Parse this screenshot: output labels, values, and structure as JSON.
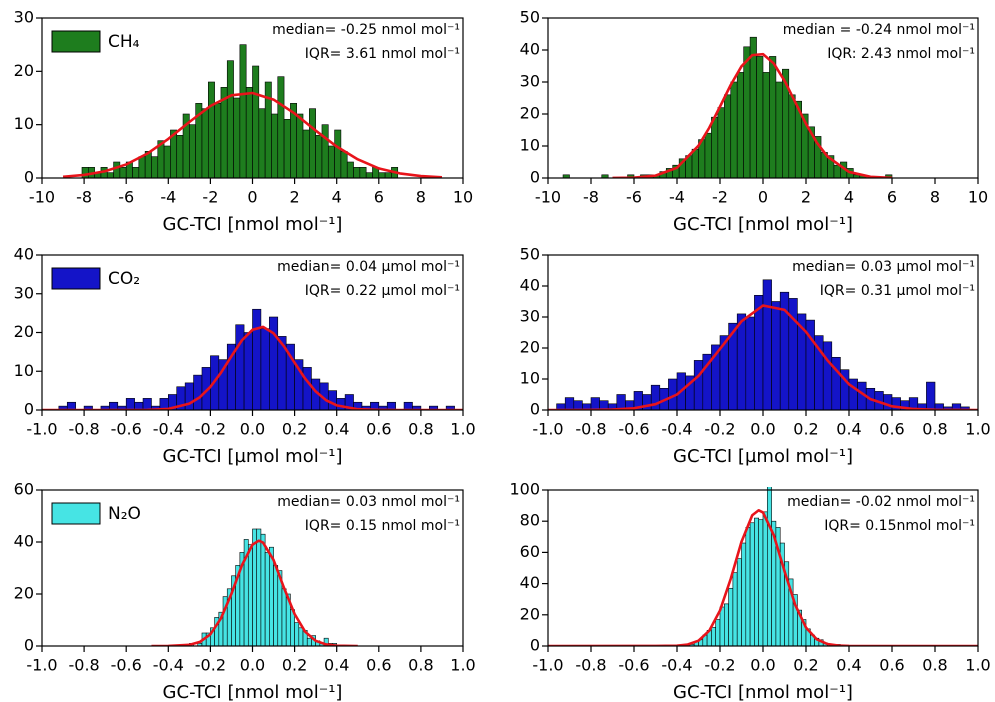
{
  "chart_data": [
    {
      "type": "histogram",
      "legend": "upper left",
      "xlabel": "GC-TCI [nmol mol⁻¹]",
      "annotations": [
        "median= -0.25 nmol mol⁻¹",
        "IQR= 3.61 nmol mol⁻¹"
      ],
      "xlim": [
        -10,
        10
      ],
      "xticks": [
        -10,
        -8,
        -6,
        -4,
        -2,
        0,
        2,
        4,
        6,
        8,
        10
      ],
      "ylim": [
        0,
        30
      ],
      "yticks": [
        0,
        10,
        20,
        30
      ],
      "bins": [
        -8.1,
        -7.8,
        -7.5,
        -7.2,
        -6.9,
        -6.6,
        -6.3,
        -6,
        -5.7,
        -5.4,
        -5.1,
        -4.8,
        -4.5,
        -4.2,
        -3.9,
        -3.6,
        -3.3,
        -3,
        -2.7,
        -2.4,
        -2.1,
        -1.8,
        -1.5,
        -1.2,
        -0.9,
        -0.6,
        -0.3,
        0,
        0.3,
        0.6,
        0.9,
        1.2,
        1.5,
        1.8,
        2.1,
        2.4,
        2.7,
        3,
        3.3,
        3.6,
        3.9,
        4.2,
        4.5,
        4.8,
        5.1,
        5.4,
        5.7,
        6,
        6.3,
        6.6,
        6.9
      ],
      "series": [
        {
          "name": "CH₄",
          "color": "#1e7d1e",
          "values": [
            2,
            2,
            1,
            2,
            1,
            3,
            2,
            3,
            2,
            4,
            5,
            4,
            7,
            6,
            9,
            8,
            12,
            10,
            14,
            13,
            18,
            14,
            17,
            22,
            15,
            25,
            17,
            21,
            13,
            18,
            12,
            19,
            11,
            14,
            12,
            9,
            13,
            8,
            10,
            6,
            9,
            5,
            3,
            2,
            2,
            1,
            2,
            1,
            1,
            2
          ]
        }
      ],
      "fit": {
        "color": "#e8141b",
        "x": [
          -9,
          -8,
          -7,
          -6,
          -5,
          -4,
          -3,
          -2,
          -1,
          0,
          1,
          2,
          3,
          4,
          5,
          6,
          7,
          8,
          9
        ],
        "values": [
          0.23,
          0.57,
          1.27,
          2.54,
          4.57,
          7.33,
          10.5,
          13.5,
          15.5,
          15.94,
          14.7,
          12.1,
          8.9,
          5.9,
          3.5,
          1.8,
          0.86,
          0.37,
          0.14
        ]
      }
    },
    {
      "type": "histogram",
      "xlabel": "GC-TCI [nmol mol⁻¹]",
      "annotations": [
        "median = -0.24 nmol mol⁻¹",
        "IQR: 2.43 nmol mol⁻¹"
      ],
      "xlim": [
        -10,
        10
      ],
      "xticks": [
        -10,
        -8,
        -6,
        -4,
        -2,
        0,
        2,
        4,
        6,
        8,
        10
      ],
      "ylim": [
        0,
        50
      ],
      "yticks": [
        0,
        10,
        20,
        30,
        40,
        50
      ],
      "bins": [
        -9.3,
        -9,
        -8.7,
        -8.4,
        -8.1,
        -7.8,
        -7.5,
        -7.2,
        -6.9,
        -6.6,
        -6.3,
        -6,
        -5.7,
        -5.4,
        -5.1,
        -4.8,
        -4.5,
        -4.2,
        -3.9,
        -3.6,
        -3.3,
        -3,
        -2.7,
        -2.4,
        -2.1,
        -1.8,
        -1.5,
        -1.2,
        -0.9,
        -0.6,
        -0.3,
        0,
        0.3,
        0.6,
        0.9,
        1.2,
        1.5,
        1.8,
        2.1,
        2.4,
        2.7,
        3,
        3.3,
        3.6,
        3.9,
        4.2,
        4.5,
        4.8,
        5.1,
        5.4,
        5.7,
        6
      ],
      "series": [
        {
          "color": "#1e7d1e",
          "values": [
            1,
            0,
            0,
            0,
            0,
            0,
            1,
            0,
            0,
            0,
            1,
            0,
            1,
            1,
            1,
            2,
            3,
            4,
            6,
            7,
            9,
            12,
            14,
            19,
            22,
            26,
            30,
            33,
            41,
            44,
            38,
            33,
            38,
            30,
            34,
            26,
            24,
            20,
            16,
            13,
            8,
            7,
            4,
            5,
            3,
            1,
            1,
            0,
            0,
            0,
            1
          ]
        }
      ],
      "fit": {
        "color": "#e8141b",
        "x": [
          -7,
          -6,
          -5,
          -4,
          -3,
          -2.5,
          -2,
          -1.5,
          -1,
          -0.5,
          0,
          0.5,
          1,
          1.5,
          2,
          2.5,
          3,
          4,
          5,
          6
        ],
        "values": [
          0.01,
          0.12,
          0.74,
          3.2,
          10.1,
          15.7,
          22.3,
          29.1,
          34.9,
          38.4,
          38.7,
          35.8,
          30.4,
          23.7,
          16.9,
          11.1,
          6.7,
          1.9,
          0.37,
          0.05
        ]
      }
    },
    {
      "type": "histogram",
      "legend": "upper left",
      "xlabel": "GC-TCI [µmol mol⁻¹]",
      "annotations": [
        "median= 0.04 µmol mol⁻¹",
        "IQR= 0.22 µmol mol⁻¹"
      ],
      "xlim": [
        -1,
        1
      ],
      "xticks": [
        {
          "value": -1,
          "label": "-1.0"
        },
        -0.8,
        -0.6,
        -0.4,
        -0.2,
        {
          "value": 0,
          "label": "0.0"
        },
        0.2,
        0.4,
        0.6,
        0.8,
        {
          "value": 1,
          "label": "1.0"
        }
      ],
      "ylim": [
        0,
        40
      ],
      "yticks": [
        0,
        10,
        20,
        30,
        40
      ],
      "bins": [
        -1,
        -0.96,
        -0.92,
        -0.88,
        -0.84,
        -0.8,
        -0.76,
        -0.72,
        -0.68,
        -0.64,
        -0.6,
        -0.56,
        -0.52,
        -0.48,
        -0.44,
        -0.4,
        -0.36,
        -0.32,
        -0.28,
        -0.24,
        -0.2,
        -0.16,
        -0.12,
        -0.08,
        -0.04,
        0,
        0.04,
        0.08,
        0.12,
        0.16,
        0.2,
        0.24,
        0.28,
        0.32,
        0.36,
        0.4,
        0.44,
        0.48,
        0.52,
        0.56,
        0.6,
        0.64,
        0.68,
        0.72,
        0.76,
        0.8,
        0.84,
        0.88,
        0.92,
        0.96,
        1
      ],
      "series": [
        {
          "name": "CO₂",
          "color": "#1414c8",
          "values": [
            0,
            0,
            1,
            2,
            0,
            1,
            0,
            1,
            2,
            1,
            3,
            2,
            3,
            1,
            3,
            4,
            6,
            7,
            9,
            11,
            14,
            13,
            17,
            22,
            20,
            26,
            21,
            24,
            19,
            17,
            13,
            11,
            8,
            7,
            5,
            3,
            4,
            2,
            1,
            2,
            1,
            2,
            0,
            2,
            1,
            0,
            1,
            0,
            1,
            0
          ]
        }
      ],
      "fit": {
        "color": "#e8141b",
        "x": [
          -1,
          -0.9,
          -0.8,
          -0.7,
          -0.6,
          -0.5,
          -0.4,
          -0.3,
          -0.25,
          -0.2,
          -0.15,
          -0.1,
          -0.05,
          0,
          0.05,
          0.1,
          0.15,
          0.2,
          0.25,
          0.3,
          0.35,
          0.4,
          0.5,
          0.6,
          0.7,
          0.8,
          0.9,
          1
        ],
        "values": [
          0,
          0,
          0,
          0,
          0,
          0.03,
          0.29,
          1.65,
          3.3,
          5.98,
          9.6,
          13.9,
          18,
          20.7,
          21.45,
          19.8,
          16.4,
          12.2,
          8.1,
          4.8,
          2.5,
          1.2,
          0.2,
          0.02,
          0,
          0,
          0,
          0
        ]
      }
    },
    {
      "type": "histogram",
      "xlabel": "GC-TCI [µmol mol⁻¹]",
      "annotations": [
        "median= 0.03 µmol mol⁻¹",
        "IQR= 0.31 µmol mol⁻¹"
      ],
      "xlim": [
        -1,
        1
      ],
      "xticks": [
        {
          "value": -1,
          "label": "-1.0"
        },
        -0.8,
        -0.6,
        -0.4,
        -0.2,
        {
          "value": 0,
          "label": "0.0"
        },
        0.2,
        0.4,
        0.6,
        0.8,
        {
          "value": 1,
          "label": "1.0"
        }
      ],
      "ylim": [
        0,
        50
      ],
      "yticks": [
        0,
        10,
        20,
        30,
        40,
        50
      ],
      "bins": [
        -1,
        -0.96,
        -0.92,
        -0.88,
        -0.84,
        -0.8,
        -0.76,
        -0.72,
        -0.68,
        -0.64,
        -0.6,
        -0.56,
        -0.52,
        -0.48,
        -0.44,
        -0.4,
        -0.36,
        -0.32,
        -0.28,
        -0.24,
        -0.2,
        -0.16,
        -0.12,
        -0.08,
        -0.04,
        0,
        0.04,
        0.08,
        0.12,
        0.16,
        0.2,
        0.24,
        0.28,
        0.32,
        0.36,
        0.4,
        0.44,
        0.48,
        0.52,
        0.56,
        0.6,
        0.64,
        0.68,
        0.72,
        0.76,
        0.8,
        0.84,
        0.88,
        0.92,
        0.96,
        1
      ],
      "series": [
        {
          "color": "#1414c8",
          "values": [
            0,
            2,
            4,
            3,
            2,
            4,
            3,
            2,
            5,
            3,
            6,
            5,
            8,
            7,
            10,
            12,
            11,
            16,
            18,
            21,
            24,
            28,
            31,
            30,
            37,
            42,
            35,
            38,
            36,
            31,
            29,
            24,
            22,
            17,
            13,
            10,
            9,
            7,
            6,
            5,
            4,
            3,
            4,
            2,
            9,
            2,
            1,
            2,
            1,
            0
          ]
        }
      ],
      "fit": {
        "color": "#e8141b",
        "x": [
          -1,
          -0.9,
          -0.8,
          -0.7,
          -0.6,
          -0.5,
          -0.4,
          -0.3,
          -0.2,
          -0.1,
          0,
          0.1,
          0.2,
          0.3,
          0.4,
          0.5,
          0.6,
          0.7,
          0.8,
          0.9,
          1
        ],
        "values": [
          0,
          0,
          0.03,
          0.14,
          0.56,
          1.87,
          5,
          11,
          19.7,
          28.6,
          33.7,
          32.3,
          25.2,
          16,
          8.3,
          3.5,
          1.18,
          0.33,
          0.07,
          0.01,
          0
        ]
      }
    },
    {
      "type": "histogram",
      "legend": "upper left",
      "xlabel": "GC-TCI [nmol mol⁻¹]",
      "annotations": [
        "median= 0.03 nmol mol⁻¹",
        "IQR= 0.15 nmol mol⁻¹"
      ],
      "xlim": [
        -1,
        1
      ],
      "xticks": [
        {
          "value": -1,
          "label": "-1.0"
        },
        -0.8,
        -0.6,
        -0.4,
        -0.2,
        {
          "value": 0,
          "label": "0.0"
        },
        0.2,
        0.4,
        0.6,
        0.8,
        {
          "value": 1,
          "label": "1.0"
        }
      ],
      "ylim": [
        0,
        60
      ],
      "yticks": [
        0,
        20,
        40,
        60
      ],
      "bins": [
        -0.3,
        -0.28,
        -0.26,
        -0.24,
        -0.22,
        -0.2,
        -0.18,
        -0.16,
        -0.14,
        -0.12,
        -0.1,
        -0.08,
        -0.06,
        -0.04,
        -0.02,
        0,
        0.02,
        0.04,
        0.06,
        0.08,
        0.1,
        0.12,
        0.14,
        0.16,
        0.18,
        0.2,
        0.22,
        0.24,
        0.26,
        0.28,
        0.3,
        0.32,
        0.34,
        0.36,
        0.38,
        0.4
      ],
      "series": [
        {
          "name": "N₂O",
          "color": "#46e4e4",
          "values": [
            1,
            0,
            1,
            5,
            5,
            7,
            11,
            13,
            19,
            22,
            27,
            31,
            36,
            41,
            39,
            45,
            45,
            43,
            36,
            38,
            31,
            29,
            22,
            20,
            14,
            9,
            7,
            6,
            3,
            4,
            2,
            1,
            3,
            1,
            1
          ]
        }
      ],
      "fit": {
        "color": "#e8141b",
        "x": [
          -0.48,
          -0.4,
          -0.3,
          -0.25,
          -0.2,
          -0.15,
          -0.1,
          -0.05,
          0,
          0.03,
          0.05,
          0.1,
          0.15,
          0.2,
          0.25,
          0.3,
          0.35,
          0.4,
          0.5
        ],
        "values": [
          0,
          0.02,
          0.45,
          1.58,
          4.5,
          10.6,
          20.1,
          31.1,
          39,
          40.5,
          39.8,
          33.1,
          22.3,
          12.3,
          5.5,
          2,
          0.59,
          0.14,
          0
        ]
      }
    },
    {
      "type": "histogram",
      "xlabel": "GC-TCI [nmol mol⁻¹]",
      "annotations": [
        "median= -0.02 nmol mol⁻¹",
        "IQR= 0.15nmol mol⁻¹"
      ],
      "xlim": [
        -1,
        1
      ],
      "xticks": [
        {
          "value": -1,
          "label": "-1.0"
        },
        -0.8,
        -0.6,
        -0.4,
        -0.2,
        {
          "value": 0,
          "label": "0.0"
        },
        0.2,
        0.4,
        0.6,
        0.8,
        {
          "value": 1,
          "label": "1.0"
        }
      ],
      "ylim": [
        0,
        100
      ],
      "yticks": [
        0,
        20,
        40,
        60,
        80,
        100
      ],
      "bins": [
        -0.4,
        -0.38,
        -0.36,
        -0.34,
        -0.32,
        -0.3,
        -0.28,
        -0.26,
        -0.24,
        -0.22,
        -0.2,
        -0.18,
        -0.16,
        -0.14,
        -0.12,
        -0.1,
        -0.08,
        -0.06,
        -0.04,
        -0.02,
        0,
        0.02,
        0.04,
        0.06,
        0.08,
        0.1,
        0.12,
        0.14,
        0.16,
        0.18,
        0.2,
        0.22,
        0.24,
        0.26,
        0.28,
        0.3,
        0.32,
        0.34,
        0.36,
        0.38,
        0.4
      ],
      "series": [
        {
          "color": "#46e4e4",
          "values": [
            0,
            0,
            1,
            1,
            3,
            4,
            7,
            10,
            12,
            17,
            25,
            27,
            37,
            47,
            56,
            66,
            76,
            79,
            82,
            81,
            86,
            104,
            80,
            76,
            66,
            54,
            43,
            33,
            23,
            17,
            11,
            7,
            5,
            4,
            2,
            1,
            0,
            1,
            0,
            0
          ]
        }
      ],
      "fit": {
        "color": "#e8141b",
        "x": [
          -1,
          -0.5,
          -0.4,
          -0.35,
          -0.3,
          -0.25,
          -0.2,
          -0.15,
          -0.1,
          -0.05,
          -0.02,
          0,
          0.05,
          0.1,
          0.15,
          0.2,
          0.25,
          0.3,
          0.35,
          0.4,
          0.5,
          1
        ],
        "values": [
          0,
          0.01,
          0.22,
          0.96,
          3.4,
          9.8,
          22.8,
          43.1,
          66.8,
          83.8,
          87,
          85.6,
          71.1,
          48,
          26.3,
          11.8,
          4.3,
          1.27,
          0.3,
          0.06,
          0,
          0
        ]
      }
    }
  ]
}
